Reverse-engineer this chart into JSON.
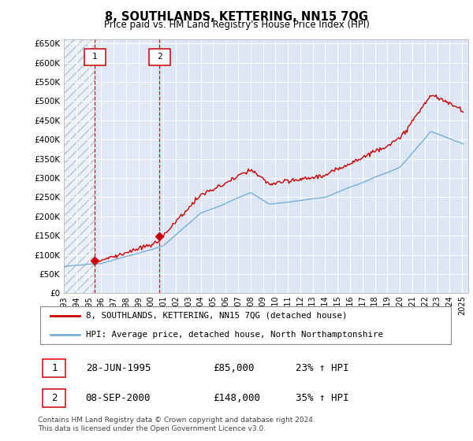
{
  "title": "8, SOUTHLANDS, KETTERING, NN15 7QG",
  "subtitle": "Price paid vs. HM Land Registry's House Price Index (HPI)",
  "legend_line1": "8, SOUTHLANDS, KETTERING, NN15 7QG (detached house)",
  "legend_line2": "HPI: Average price, detached house, North Northamptonshire",
  "footer": "Contains HM Land Registry data © Crown copyright and database right 2024.\nThis data is licensed under the Open Government Licence v3.0.",
  "transaction1_date": "28-JUN-1995",
  "transaction1_price": "£85,000",
  "transaction1_hpi": "23% ↑ HPI",
  "transaction2_date": "08-SEP-2000",
  "transaction2_price": "£148,000",
  "transaction2_hpi": "35% ↑ HPI",
  "transaction1_year": 1995.49,
  "transaction1_value": 85000,
  "transaction2_year": 2000.68,
  "transaction2_value": 148000,
  "ylim": [
    0,
    660000
  ],
  "xlim_start": 1993.0,
  "xlim_end": 2025.5,
  "yticks": [
    0,
    50000,
    100000,
    150000,
    200000,
    250000,
    300000,
    350000,
    400000,
    450000,
    500000,
    550000,
    600000,
    650000
  ],
  "ytick_labels": [
    "£0",
    "£50K",
    "£100K",
    "£150K",
    "£200K",
    "£250K",
    "£300K",
    "£350K",
    "£400K",
    "£450K",
    "£500K",
    "£550K",
    "£600K",
    "£650K"
  ],
  "xtick_years": [
    1993,
    1994,
    1995,
    1996,
    1997,
    1998,
    1999,
    2000,
    2001,
    2002,
    2003,
    2004,
    2005,
    2006,
    2007,
    2008,
    2009,
    2010,
    2011,
    2012,
    2013,
    2014,
    2015,
    2016,
    2017,
    2018,
    2019,
    2020,
    2021,
    2022,
    2023,
    2024,
    2025
  ],
  "hpi_color": "#7bafd4",
  "price_color": "#cc0000",
  "background_color": "#dce6f5",
  "vline_color": "#cc0000",
  "marker_color": "#cc0000"
}
